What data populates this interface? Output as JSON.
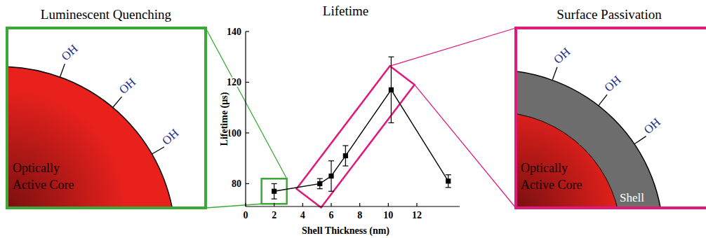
{
  "chart_data": {
    "type": "line",
    "title": "Lifetime",
    "x_label": "Shell Thickness (nm)",
    "y_label": "Lifetime (µs)",
    "x": [
      2,
      5.2,
      6,
      7,
      10.2,
      14.2
    ],
    "values": [
      77,
      80,
      83,
      91,
      117,
      81
    ],
    "errors": [
      3,
      2,
      6,
      4,
      13,
      2.5
    ],
    "xlim": [
      0,
      15
    ],
    "ylim": [
      71,
      140
    ],
    "xticks": [
      0,
      2,
      4,
      6,
      8,
      10,
      12
    ],
    "yticks": [
      80,
      100,
      120,
      140
    ],
    "color": "#000000",
    "marker": "square",
    "line_style": "solid"
  },
  "panels": [
    {
      "title": "Luminescent Quenching",
      "core_label": [
        "Optically",
        "Active Core"
      ],
      "surface_groups": [
        "OH",
        "OH",
        "OH"
      ]
    },
    {
      "title": "Surface Passivation",
      "core_label": [
        "Optically",
        "Active Core"
      ],
      "shell_label": "Shell",
      "surface_groups": [
        "OH",
        "OH",
        "OH"
      ]
    }
  ]
}
